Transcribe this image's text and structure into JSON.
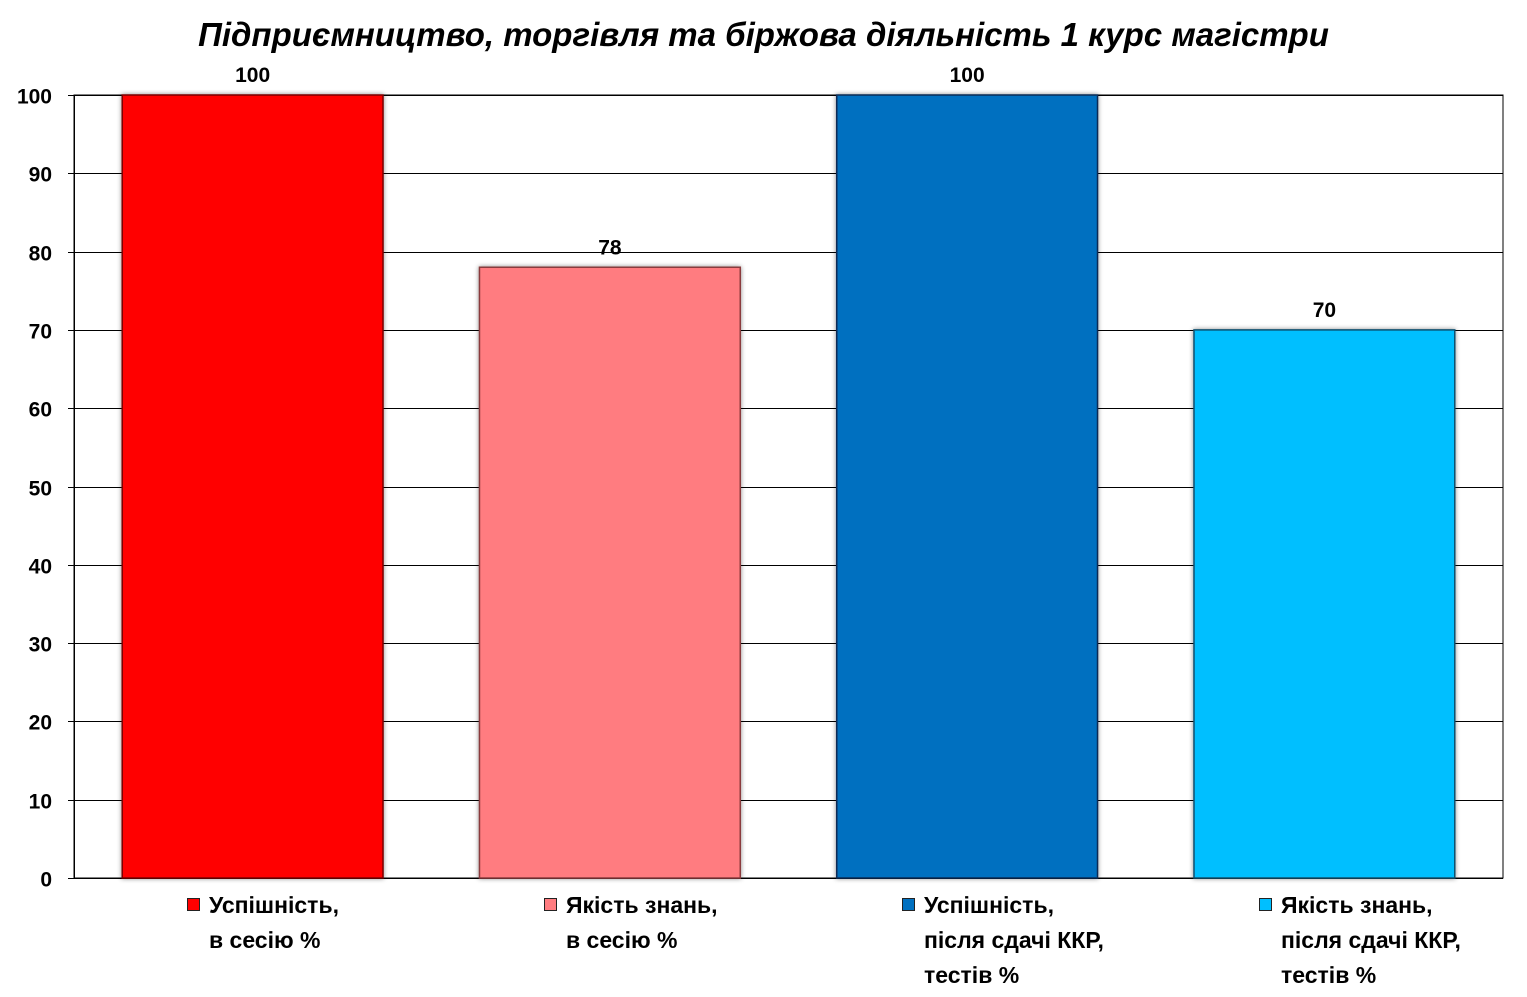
{
  "chart_data": {
    "type": "bar",
    "title": "Підприємництво, торгівля та біржова діяльність 1 курс магістри",
    "xlabel": "",
    "ylabel": "",
    "ylim": [
      0,
      100
    ],
    "yticks": [
      0,
      10,
      20,
      30,
      40,
      50,
      60,
      70,
      80,
      90,
      100
    ],
    "grid": true,
    "legend_position": "bottom",
    "series": [
      {
        "name": "Успішність,\nв сесію %",
        "value": 100,
        "color": "#ff0000",
        "edge": "#7a0000"
      },
      {
        "name": "Якість знань,\nв сесію %",
        "value": 78,
        "color": "#ff7c80",
        "edge": "#8a3a3c"
      },
      {
        "name": "Успішність,\nпісля сдачі ККР,\nтестів %",
        "value": 100,
        "color": "#0070c0",
        "edge": "#0a2a55"
      },
      {
        "name": "Якість знань,\nпісля сдачі ККР,\nтестів %",
        "value": 70,
        "color": "#00bfff",
        "edge": "#10506e"
      }
    ]
  }
}
